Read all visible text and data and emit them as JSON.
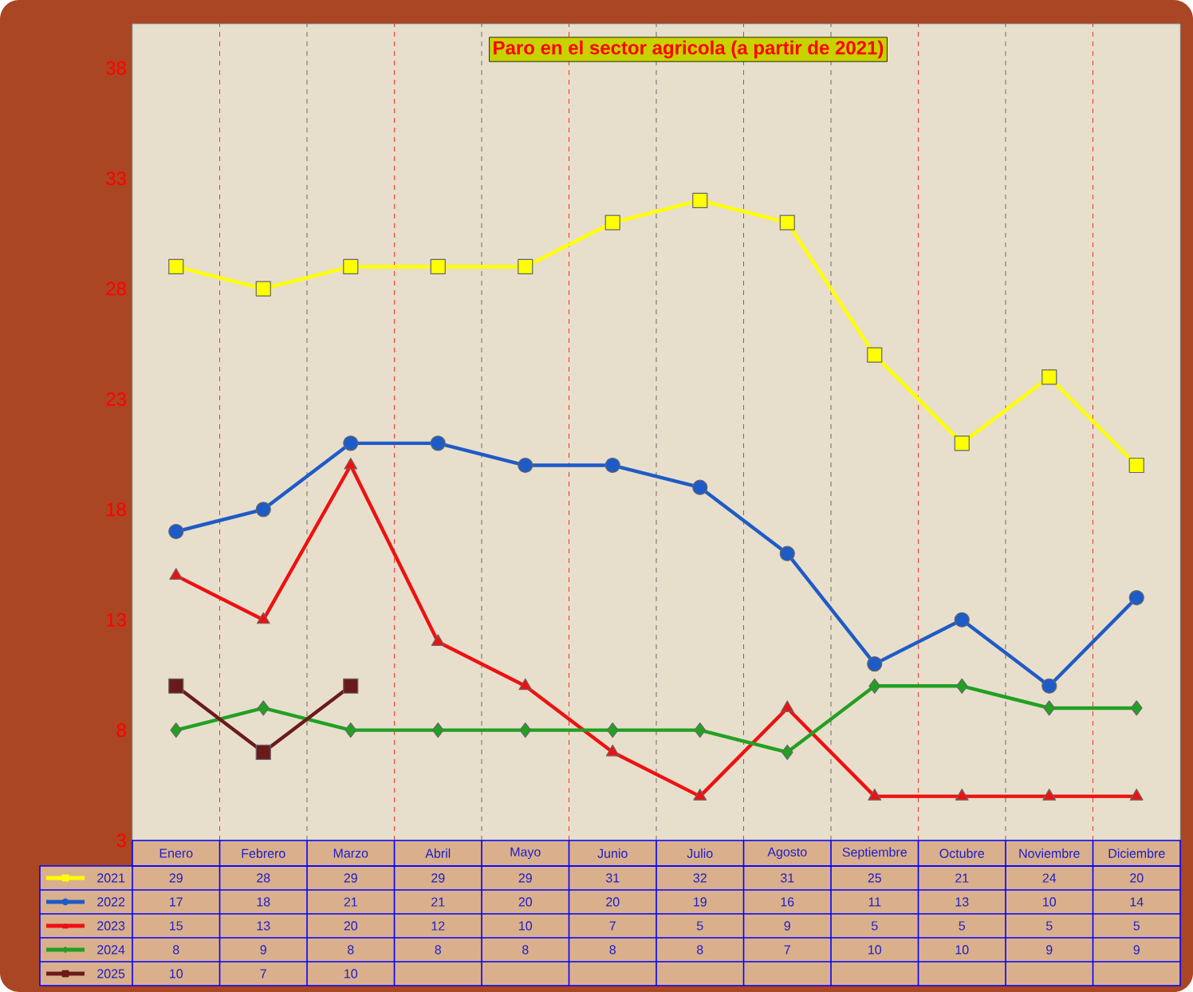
{
  "chart_data": {
    "type": "line",
    "title": "Paro en el sector agricola (a partir de 2021)",
    "categories": [
      "Enero",
      "Febrero",
      "Marzo",
      "Abril",
      "Mayo",
      "Junio",
      "Julio",
      "Agosto",
      "Septiembre",
      "Octubre",
      "Noviembre",
      "Diciembre"
    ],
    "series": [
      {
        "name": "2021",
        "color": "#ffff00",
        "marker": "square",
        "values": [
          29,
          28,
          29,
          29,
          29,
          31,
          32,
          31,
          25,
          21,
          24,
          20
        ]
      },
      {
        "name": "2022",
        "color": "#1f5bc6",
        "marker": "circle",
        "values": [
          17,
          18,
          21,
          21,
          20,
          20,
          19,
          16,
          11,
          13,
          10,
          14
        ]
      },
      {
        "name": "2023",
        "color": "#ee1111",
        "marker": "triangle",
        "values": [
          15,
          13,
          20,
          12,
          10,
          7,
          5,
          9,
          5,
          5,
          5,
          5
        ]
      },
      {
        "name": "2024",
        "color": "#22a022",
        "marker": "diamond",
        "values": [
          8,
          9,
          8,
          8,
          8,
          8,
          8,
          7,
          10,
          10,
          9,
          9
        ]
      },
      {
        "name": "2025",
        "color": "#6b1a1a",
        "marker": "square",
        "values": [
          10,
          7,
          10,
          null,
          null,
          null,
          null,
          null,
          null,
          null,
          null,
          null
        ]
      }
    ],
    "ylim": [
      3,
      40
    ],
    "yticks": [
      3,
      8,
      13,
      18,
      23,
      28,
      33,
      38
    ],
    "grid": "x",
    "legend": "bottom",
    "data_labels": true,
    "line_style": "solid"
  }
}
